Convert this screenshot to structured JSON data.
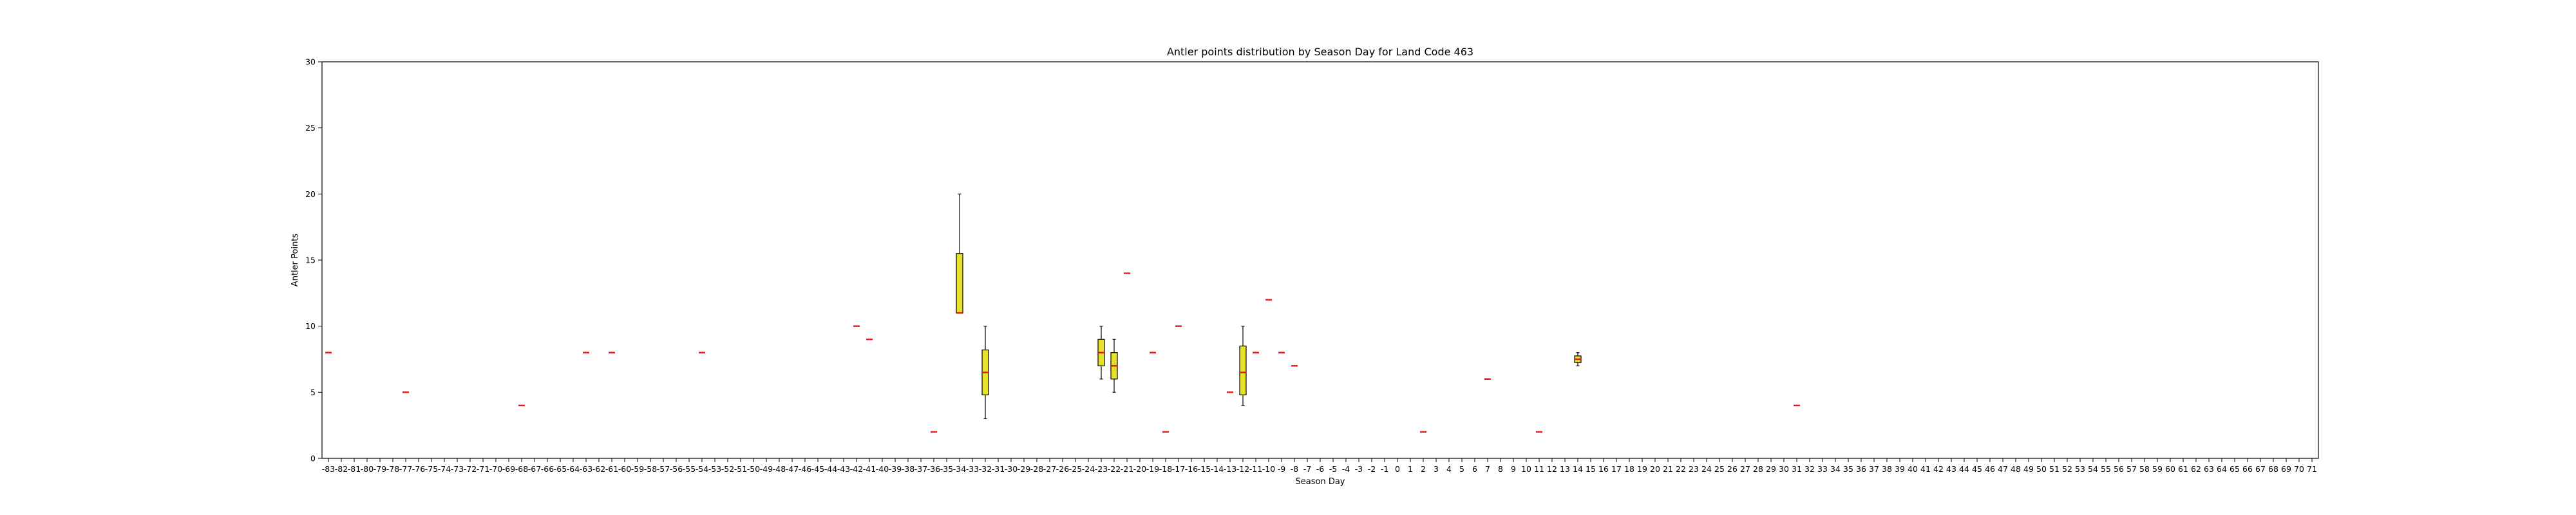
{
  "colors": {
    "box_fill": "#e6e02a",
    "box_edge": "#000000",
    "median": "#e31a1c",
    "whisker": "#000000",
    "axis": "#000000",
    "background": "#ffffff"
  },
  "chart_data": {
    "type": "box",
    "title": "Antler points distribution by Season Day for Land Code 463",
    "xlabel": "Season Day",
    "ylabel": "Antler Points",
    "ylim": [
      0,
      30
    ],
    "yticks": [
      0,
      5,
      10,
      15,
      20,
      25,
      30
    ],
    "grid": false,
    "legend": "none",
    "categories": [
      -83,
      -82,
      -81,
      -80,
      -79,
      -78,
      -77,
      -76,
      -75,
      -74,
      -73,
      -72,
      -71,
      -70,
      -69,
      -68,
      -67,
      -66,
      -65,
      -64,
      -63,
      -62,
      -61,
      -60,
      -59,
      -58,
      -57,
      -56,
      -55,
      -54,
      -53,
      -52,
      -51,
      -50,
      -49,
      -48,
      -47,
      -46,
      -45,
      -44,
      -43,
      -42,
      -41,
      -40,
      -39,
      -38,
      -37,
      -36,
      -35,
      -34,
      -33,
      -32,
      -31,
      -30,
      -29,
      -28,
      -27,
      -26,
      -25,
      -24,
      -23,
      -22,
      -21,
      -20,
      -19,
      -18,
      -17,
      -16,
      -15,
      -14,
      -13,
      -12,
      -11,
      -10,
      -9,
      -8,
      -7,
      -6,
      -5,
      -4,
      -3,
      -2,
      -1,
      0,
      1,
      2,
      3,
      4,
      5,
      6,
      7,
      8,
      9,
      10,
      11,
      12,
      13,
      14,
      15,
      16,
      17,
      18,
      19,
      20,
      21,
      22,
      23,
      24,
      25,
      26,
      27,
      28,
      29,
      30,
      31,
      32,
      33,
      34,
      35,
      36,
      37,
      38,
      39,
      40,
      41,
      42,
      43,
      44,
      45,
      46,
      47,
      48,
      49,
      50,
      51,
      52,
      53,
      54,
      55,
      56,
      57,
      58,
      59,
      60,
      61,
      62,
      63,
      64,
      65,
      66,
      67,
      68,
      69,
      70,
      71
    ],
    "boxes": [
      {
        "day": -83,
        "whislo": 8,
        "q1": 8,
        "med": 8,
        "q3": 8,
        "whishi": 8
      },
      {
        "day": -77,
        "whislo": 5,
        "q1": 5,
        "med": 5,
        "q3": 5,
        "whishi": 5
      },
      {
        "day": -68,
        "whislo": 4,
        "q1": 4,
        "med": 4,
        "q3": 4,
        "whishi": 4
      },
      {
        "day": -63,
        "whislo": 8,
        "q1": 8,
        "med": 8,
        "q3": 8,
        "whishi": 8
      },
      {
        "day": -61,
        "whislo": 8,
        "q1": 8,
        "med": 8,
        "q3": 8,
        "whishi": 8
      },
      {
        "day": -54,
        "whislo": 8,
        "q1": 8,
        "med": 8,
        "q3": 8,
        "whishi": 8
      },
      {
        "day": -42,
        "whislo": 10,
        "q1": 10,
        "med": 10,
        "q3": 10,
        "whishi": 10
      },
      {
        "day": -41,
        "whislo": 9,
        "q1": 9,
        "med": 9,
        "q3": 9,
        "whishi": 9
      },
      {
        "day": -36,
        "whislo": 2,
        "q1": 2,
        "med": 2,
        "q3": 2,
        "whishi": 2
      },
      {
        "day": -34,
        "whislo": 11,
        "q1": 11,
        "med": 11,
        "q3": 15.5,
        "whishi": 20
      },
      {
        "day": -32,
        "whislo": 3,
        "q1": 4.8,
        "med": 6.5,
        "q3": 8.2,
        "whishi": 10
      },
      {
        "day": -23,
        "whislo": 6,
        "q1": 7,
        "med": 8,
        "q3": 9,
        "whishi": 10
      },
      {
        "day": -22,
        "whislo": 5,
        "q1": 6,
        "med": 7,
        "q3": 8,
        "whishi": 9
      },
      {
        "day": -21,
        "whislo": 14,
        "q1": 14,
        "med": 14,
        "q3": 14,
        "whishi": 14
      },
      {
        "day": -19,
        "whislo": 8,
        "q1": 8,
        "med": 8,
        "q3": 8,
        "whishi": 8
      },
      {
        "day": -18,
        "whislo": 2,
        "q1": 2,
        "med": 2,
        "q3": 2,
        "whishi": 2
      },
      {
        "day": -17,
        "whislo": 10,
        "q1": 10,
        "med": 10,
        "q3": 10,
        "whishi": 10
      },
      {
        "day": -13,
        "whislo": 5,
        "q1": 5,
        "med": 5,
        "q3": 5,
        "whishi": 5
      },
      {
        "day": -12,
        "whislo": 4,
        "q1": 4.8,
        "med": 6.5,
        "q3": 8.5,
        "whishi": 10
      },
      {
        "day": -11,
        "whislo": 8,
        "q1": 8,
        "med": 8,
        "q3": 8,
        "whishi": 8
      },
      {
        "day": -10,
        "whislo": 12,
        "q1": 12,
        "med": 12,
        "q3": 12,
        "whishi": 12
      },
      {
        "day": -9,
        "whislo": 8,
        "q1": 8,
        "med": 8,
        "q3": 8,
        "whishi": 8
      },
      {
        "day": -8,
        "whislo": 7,
        "q1": 7,
        "med": 7,
        "q3": 7,
        "whishi": 7
      },
      {
        "day": 2,
        "whislo": 2,
        "q1": 2,
        "med": 2,
        "q3": 2,
        "whishi": 2
      },
      {
        "day": 7,
        "whislo": 6,
        "q1": 6,
        "med": 6,
        "q3": 6,
        "whishi": 6
      },
      {
        "day": 11,
        "whislo": 2,
        "q1": 2,
        "med": 2,
        "q3": 2,
        "whishi": 2
      },
      {
        "day": 14,
        "whislo": 7,
        "q1": 7.25,
        "med": 7.5,
        "q3": 7.75,
        "whishi": 8
      },
      {
        "day": 31,
        "whislo": 4,
        "q1": 4,
        "med": 4,
        "q3": 4,
        "whishi": 4
      }
    ]
  }
}
